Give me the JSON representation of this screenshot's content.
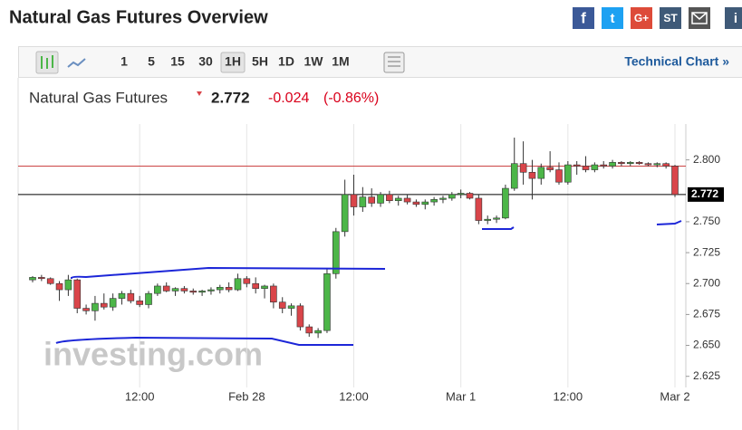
{
  "header": {
    "title": "Natural Gas Futures Overview",
    "share": [
      "f",
      "t",
      "G+",
      "ST",
      "i"
    ]
  },
  "toolbar": {
    "intervals": [
      "1",
      "5",
      "15",
      "30",
      "1H",
      "5H",
      "1D",
      "1W",
      "1M"
    ],
    "active": "1H",
    "link": "Technical Chart »"
  },
  "quote": {
    "name": "Natural Gas Futures",
    "price": "2.772",
    "change": "-0.024",
    "change_percent": "(-0.86%)"
  },
  "chart_data": {
    "type": "candlestick",
    "watermark": "investing.com",
    "categories": [
      null,
      null,
      null,
      null,
      null,
      null,
      null,
      null,
      null,
      null,
      null,
      null,
      "12:00",
      null,
      null,
      null,
      null,
      null,
      null,
      null,
      null,
      null,
      null,
      null,
      "Feb 28",
      null,
      null,
      null,
      null,
      null,
      null,
      null,
      null,
      null,
      null,
      null,
      "12:00",
      null,
      null,
      null,
      null,
      null,
      null,
      null,
      null,
      null,
      null,
      null,
      "Mar 1",
      null,
      null,
      null,
      null,
      null,
      null,
      null,
      null,
      null,
      null,
      null,
      "12:00",
      null,
      null,
      null,
      null,
      null,
      null,
      null,
      null,
      null,
      null,
      null,
      "Mar 2"
    ],
    "open": [
      2.703,
      2.705,
      2.704,
      2.7,
      2.695,
      2.703,
      2.68,
      2.678,
      2.684,
      2.681,
      2.688,
      2.692,
      2.686,
      2.683,
      2.692,
      2.698,
      2.694,
      2.696,
      2.694,
      2.693,
      2.694,
      2.695,
      2.697,
      2.695,
      2.704,
      2.7,
      2.696,
      2.698,
      2.685,
      2.68,
      2.682,
      2.665,
      2.66,
      2.662,
      2.708,
      2.742,
      2.772,
      2.762,
      2.77,
      2.765,
      2.772,
      2.767,
      2.769,
      2.766,
      2.764,
      2.766,
      2.768,
      2.769,
      2.772,
      2.773,
      2.769,
      2.751,
      2.752,
      2.753,
      2.777,
      2.797,
      2.79,
      2.785,
      2.794,
      2.792,
      2.782,
      2.796,
      2.795,
      2.792,
      2.796,
      2.795,
      2.798,
      2.797,
      2.798,
      2.797,
      2.796,
      2.797,
      2.795
    ],
    "high": [
      2.706,
      2.707,
      2.705,
      2.702,
      2.707,
      2.704,
      2.683,
      2.69,
      2.692,
      2.692,
      2.694,
      2.695,
      2.69,
      2.694,
      2.7,
      2.701,
      2.697,
      2.698,
      2.696,
      2.695,
      2.697,
      2.699,
      2.701,
      2.708,
      2.706,
      2.705,
      2.699,
      2.7,
      2.689,
      2.684,
      2.684,
      2.667,
      2.664,
      2.712,
      2.745,
      2.784,
      2.788,
      2.778,
      2.777,
      2.774,
      2.775,
      2.771,
      2.772,
      2.768,
      2.768,
      2.77,
      2.771,
      2.774,
      2.776,
      2.774,
      2.772,
      2.755,
      2.755,
      2.78,
      2.818,
      2.815,
      2.8,
      2.797,
      2.807,
      2.798,
      2.799,
      2.799,
      2.803,
      2.798,
      2.799,
      2.8,
      2.799,
      2.799,
      2.799,
      2.798,
      2.798,
      2.798,
      2.796
    ],
    "low": [
      2.701,
      2.702,
      2.699,
      2.686,
      2.69,
      2.676,
      2.675,
      2.67,
      2.679,
      2.678,
      2.683,
      2.684,
      2.681,
      2.68,
      2.69,
      2.693,
      2.69,
      2.692,
      2.691,
      2.69,
      2.691,
      2.692,
      2.693,
      2.694,
      2.697,
      2.692,
      2.688,
      2.68,
      2.676,
      2.674,
      2.662,
      2.657,
      2.656,
      2.66,
      2.704,
      2.738,
      2.755,
      2.758,
      2.762,
      2.762,
      2.765,
      2.763,
      2.764,
      2.762,
      2.76,
      2.763,
      2.765,
      2.767,
      2.769,
      2.768,
      2.748,
      2.748,
      2.749,
      2.752,
      2.775,
      2.78,
      2.768,
      2.78,
      2.79,
      2.78,
      2.78,
      2.788,
      2.79,
      2.79,
      2.793,
      2.793,
      2.795,
      2.795,
      2.796,
      2.795,
      2.794,
      2.793,
      2.77
    ],
    "close": [
      2.705,
      2.704,
      2.7,
      2.695,
      2.703,
      2.68,
      2.678,
      2.684,
      2.681,
      2.688,
      2.692,
      2.686,
      2.683,
      2.692,
      2.698,
      2.694,
      2.696,
      2.694,
      2.693,
      2.694,
      2.695,
      2.697,
      2.695,
      2.704,
      2.7,
      2.696,
      2.698,
      2.685,
      2.68,
      2.682,
      2.665,
      2.66,
      2.662,
      2.708,
      2.742,
      2.772,
      2.762,
      2.77,
      2.765,
      2.772,
      2.767,
      2.769,
      2.766,
      2.764,
      2.766,
      2.768,
      2.769,
      2.772,
      2.773,
      2.769,
      2.751,
      2.752,
      2.753,
      2.777,
      2.797,
      2.79,
      2.785,
      2.794,
      2.792,
      2.782,
      2.796,
      2.795,
      2.792,
      2.796,
      2.795,
      2.798,
      2.797,
      2.798,
      2.797,
      2.796,
      2.797,
      2.795,
      2.772
    ],
    "up_color": "#4cb648",
    "down_color": "#d9454a",
    "last_price": {
      "value": 2.772,
      "label": "2.772"
    },
    "reference_line": 2.795,
    "ylim": [
      2.616,
      2.829
    ],
    "yticks": [
      2.625,
      {
        "value": 2.65,
        "label": "2.650"
      },
      2.675,
      {
        "value": 2.7,
        "label": "2.700"
      },
      2.725,
      {
        "value": 2.75,
        "label": "2.750"
      },
      {
        "value": 2.8,
        "label": "2.800"
      }
    ],
    "grid": true
  }
}
